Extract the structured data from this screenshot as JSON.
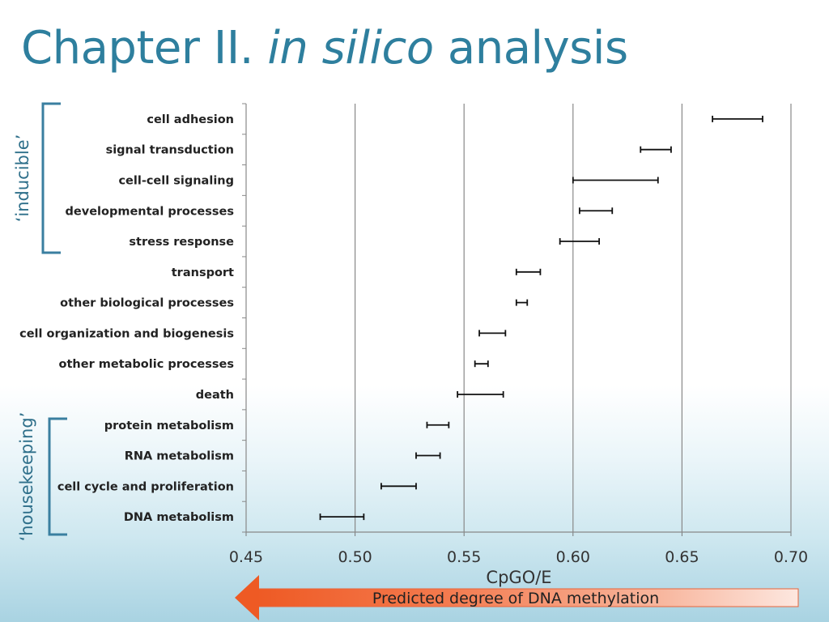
{
  "slide": {
    "title_plain": "Chapter II. ",
    "title_italic": "in silico",
    "title_rest": " analysis"
  },
  "colors": {
    "title": "#2e7f9e",
    "bracket": "#3a7fa0",
    "arrow_dark": "#ee5a24",
    "arrow_light": "#fde7df",
    "grid": "#888888"
  },
  "chart_data": {
    "type": "errorbar",
    "orientation": "horizontal",
    "xlabel": "CpGO/E",
    "xlim": [
      0.45,
      0.7
    ],
    "xticks": [
      "0.45",
      "0.50",
      "0.55",
      "0.60",
      "0.65",
      "0.70"
    ],
    "grid": true,
    "categories": [
      "cell adhesion",
      "signal transduction",
      "cell-cell signaling",
      "developmental processes",
      "stress response",
      "transport",
      "other biological processes",
      "cell organization and biogenesis",
      "other metabolic processes",
      "death",
      "protein metabolism",
      "RNA metabolism",
      "cell cycle and proliferation",
      "DNA metabolism"
    ],
    "intervals": [
      [
        0.664,
        0.687
      ],
      [
        0.631,
        0.645
      ],
      [
        0.6,
        0.639
      ],
      [
        0.603,
        0.618
      ],
      [
        0.594,
        0.612
      ],
      [
        0.574,
        0.585
      ],
      [
        0.574,
        0.579
      ],
      [
        0.557,
        0.569
      ],
      [
        0.555,
        0.561
      ],
      [
        0.547,
        0.568
      ],
      [
        0.533,
        0.543
      ],
      [
        0.528,
        0.539
      ],
      [
        0.512,
        0.528
      ],
      [
        0.484,
        0.504
      ]
    ],
    "groups": [
      {
        "label": "‘inducible’",
        "first": 0,
        "last": 4
      },
      {
        "label": "‘housekeeping’",
        "first": 10,
        "last": 13
      }
    ],
    "arrow_label": "Predicted degree of DNA methylation"
  }
}
